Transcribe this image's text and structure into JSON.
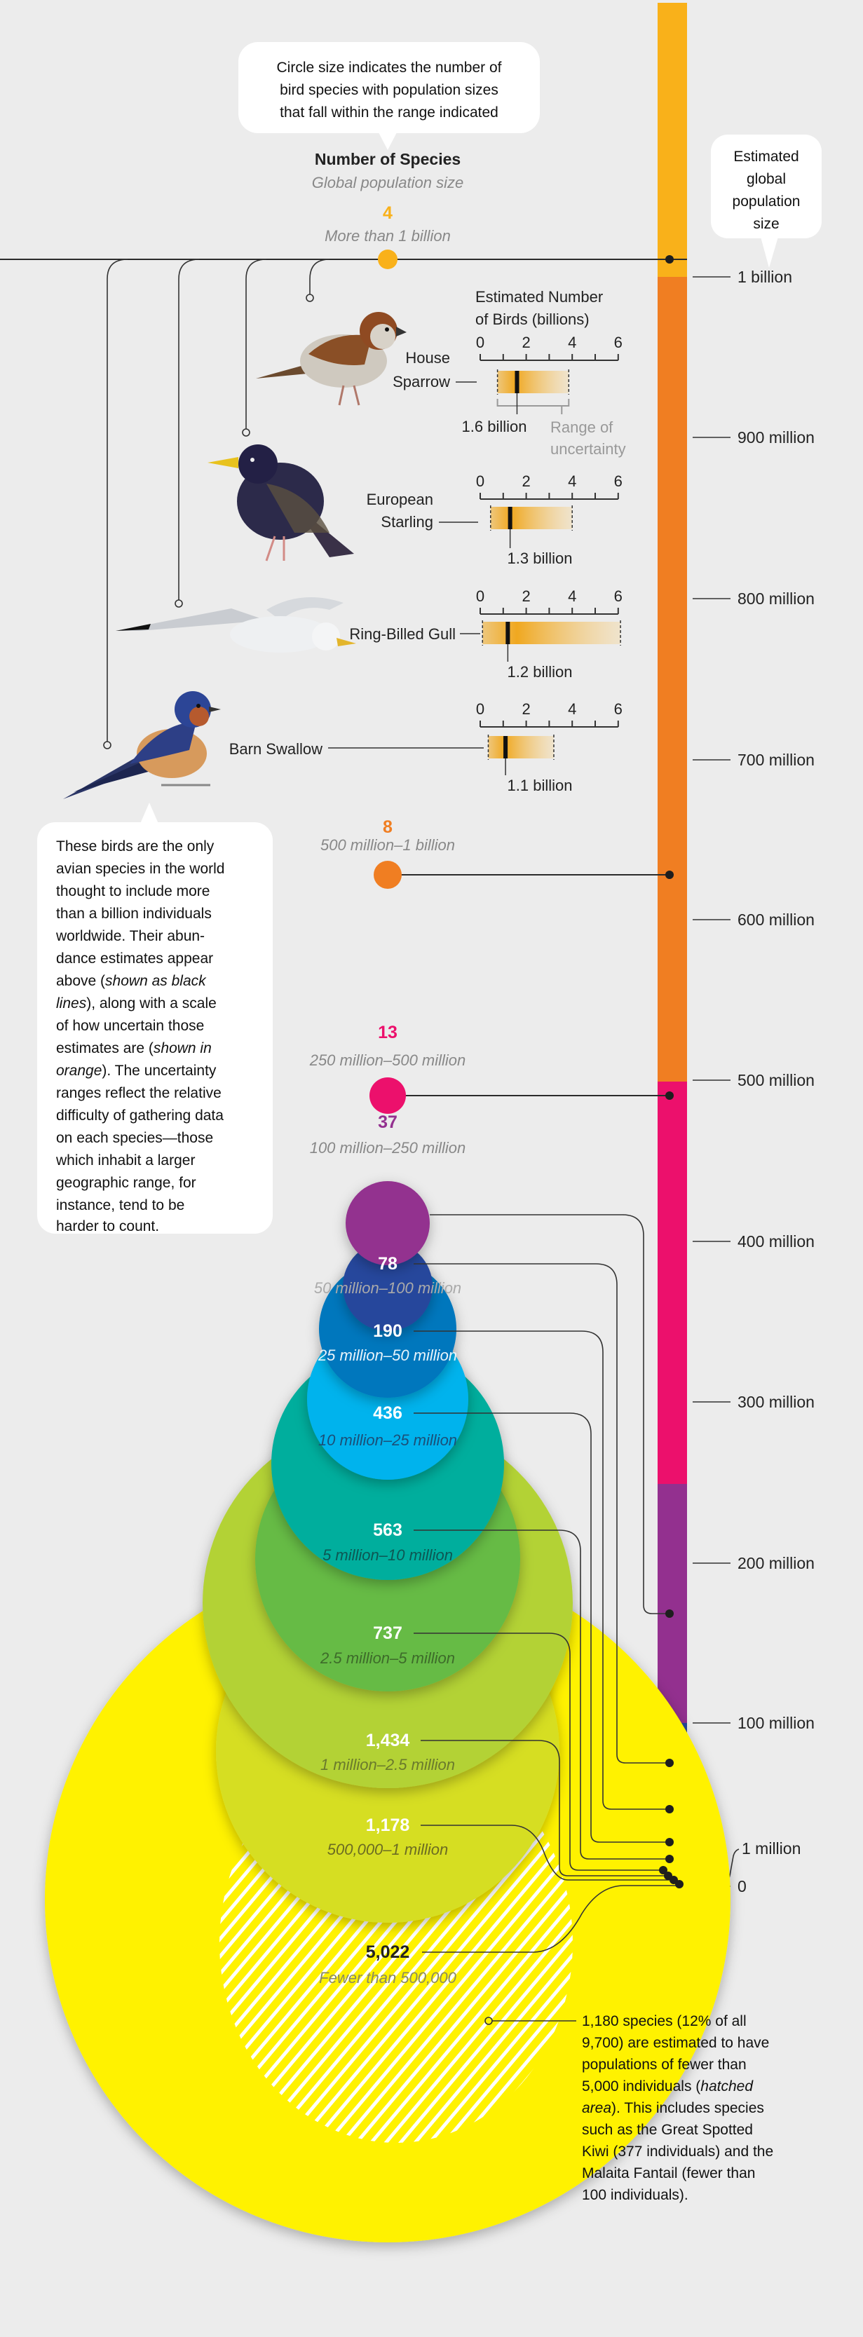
{
  "callout_top": {
    "lines": [
      "Circle size indicates the number of",
      "bird species with population sizes",
      "that fall within the range indicated"
    ]
  },
  "legend": {
    "title": "Number of Species",
    "subtitle": "Global population size"
  },
  "scale_callout": {
    "lines": [
      "Estimated",
      "global",
      "population",
      "size"
    ]
  },
  "scale_ticks": [
    "1 billion",
    "900 million",
    "800 million",
    "700 million",
    "600 million",
    "500 million",
    "400 million",
    "300 million",
    "200 million",
    "100 million",
    "1 million",
    "0"
  ],
  "groups": [
    {
      "count": "4",
      "range": "More than 1 billion",
      "color": "#f9b11a"
    },
    {
      "count": "8",
      "range": "500 million–1 billion",
      "color": "#f07e22"
    },
    {
      "count": "13",
      "range": "250 million–500 million",
      "color": "#ec106c"
    },
    {
      "count": "37",
      "range": "100 million–250 million",
      "color": "#93308f"
    },
    {
      "count": "78",
      "range": "50 million–100 million",
      "color": "#25479c"
    },
    {
      "count": "190",
      "range": "25 million–50 million",
      "color": "#0477bd"
    },
    {
      "count": "436",
      "range": "10 million–25 million",
      "color": "#00b3ed"
    },
    {
      "count": "563",
      "range": "5 million–10 million",
      "color": "#00ae9d"
    },
    {
      "count": "737",
      "range": "2.5 million–5 million",
      "color": "#66bb45"
    },
    {
      "count": "1,434",
      "range": "1 million–2.5 million",
      "color": "#b3d235"
    },
    {
      "count": "1,178",
      "range": "500,000–1 million",
      "color": "#d6de23"
    },
    {
      "count": "5,022",
      "range": "Fewer than 500,000",
      "color": "#fff200"
    }
  ],
  "mini_chart": {
    "title_lines": [
      "Estimated Number",
      "of Birds (billions)"
    ],
    "tick_labels": [
      "0",
      "2",
      "4",
      "6"
    ],
    "range_label_lines": [
      "Range of",
      "uncertainty"
    ]
  },
  "birds": [
    {
      "name_lines": [
        "House",
        "Sparrow"
      ],
      "estimate_label": "1.6 billion"
    },
    {
      "name_lines": [
        "European",
        "Starling"
      ],
      "estimate_label": "1.3 billion"
    },
    {
      "name_lines": [
        "Ring-Billed Gull"
      ],
      "estimate_label": "1.2 billion"
    },
    {
      "name_lines": [
        "Barn Swallow"
      ],
      "estimate_label": "1.1 billion"
    }
  ],
  "left_note": {
    "lines": [
      [
        "These birds are the only"
      ],
      [
        "avian species in the world"
      ],
      [
        "thought to include more"
      ],
      [
        "than a billion individuals"
      ],
      [
        "worldwide. Their abun-"
      ],
      [
        "dance estimates appear"
      ],
      [
        "above (",
        "shown as black"
      ],
      [
        "lines",
        "), along with a scale"
      ],
      [
        "of how uncertain those"
      ],
      [
        "estimates are (",
        "shown in"
      ],
      [
        "orange",
        "). The uncertainty"
      ],
      [
        "ranges reflect the relative"
      ],
      [
        "difficulty of gathering data"
      ],
      [
        "on each species—those"
      ],
      [
        "which inhabit a larger"
      ],
      [
        "geographic range, for"
      ],
      [
        "instance, tend to be"
      ],
      [
        "harder to count."
      ]
    ]
  },
  "bottom_note": {
    "lines": [
      [
        "1,180 species (12% of all"
      ],
      [
        "9,700) are estimated to have"
      ],
      [
        "populations of fewer than"
      ],
      [
        "5,000 individuals (",
        "hatched"
      ],
      [
        "area",
        "). This includes species"
      ],
      [
        "such as the Great Spotted"
      ],
      [
        "Kiwi (377 individuals) and the"
      ],
      [
        "Malaita Fantail (fewer than"
      ],
      [
        "100 individuals)."
      ]
    ]
  },
  "chart_data": [
    {
      "type": "bar",
      "title": "Estimated Number of Birds (billions)",
      "xlim": [
        0,
        6
      ],
      "ticks": [
        0,
        2,
        4,
        6
      ],
      "categories": [
        "House Sparrow",
        "European Starling",
        "Ring-Billed Gull",
        "Barn Swallow"
      ],
      "estimates": [
        1.6,
        1.3,
        1.2,
        1.1
      ],
      "uncertainty_ranges": [
        [
          0.75,
          3.85
        ],
        [
          0.45,
          4.0
        ],
        [
          0.1,
          6.1
        ],
        [
          0.35,
          3.2
        ]
      ],
      "colors": {
        "estimate": "#111111",
        "range": "#f0a820"
      }
    },
    {
      "type": "scatter",
      "title": "Number of Species",
      "subtitle": "Global population size",
      "categories": [
        "More than 1 billion",
        "500 million–1 billion",
        "250 million–500 million",
        "100 million–250 million",
        "50 million–100 million",
        "25 million–50 million",
        "10 million–25 million",
        "5 million–10 million",
        "2.5 million–5 million",
        "1 million–2.5 million",
        "500,000–1 million",
        "Fewer than 500,000"
      ],
      "values": [
        4,
        8,
        13,
        37,
        78,
        190,
        436,
        563,
        737,
        1434,
        1178,
        5022
      ],
      "encoding": "circle area = number of species",
      "hatched_subset": {
        "species": 1180,
        "population_below": 5000
      }
    },
    {
      "type": "bar",
      "ylabel": "Estimated global population size",
      "y_ticks": [
        "0",
        "1 million",
        "100 million",
        "200 million",
        "300 million",
        "400 million",
        "500 million",
        "600 million",
        "700 million",
        "800 million",
        "900 million",
        "1 billion"
      ],
      "segments_bounds_millions": [
        [
          1000,
          null
        ],
        [
          500,
          1000
        ],
        [
          250,
          500
        ],
        [
          100,
          250
        ],
        [
          50,
          100
        ],
        [
          25,
          50
        ],
        [
          10,
          25
        ],
        [
          5,
          10
        ],
        [
          2.5,
          5
        ],
        [
          1,
          2.5
        ],
        [
          0.5,
          1
        ],
        [
          0,
          0.5
        ]
      ]
    }
  ]
}
